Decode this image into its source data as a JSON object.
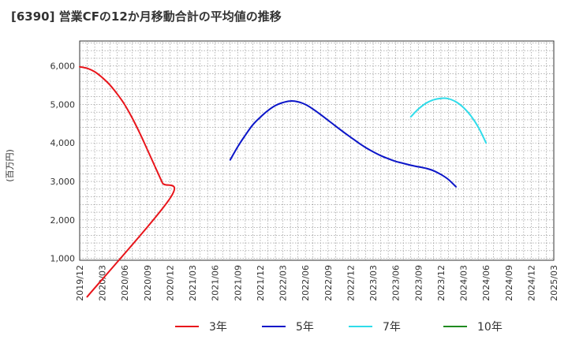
{
  "chart_data": {
    "type": "line",
    "title": "[6390]  営業CFの12か月移動合計の平均値の推移",
    "ylabel": "(百万円)",
    "xlabel": "",
    "ylim": [
      950,
      6650
    ],
    "yticks": [
      1000,
      2000,
      3000,
      4000,
      5000,
      6000
    ],
    "ytick_labels": [
      "1,000",
      "2,000",
      "3,000",
      "4,000",
      "5,000",
      "6,000"
    ],
    "xticks": [
      "2019/12",
      "2020/03",
      "2020/06",
      "2020/09",
      "2020/12",
      "2021/03",
      "2021/06",
      "2021/09",
      "2021/12",
      "2022/03",
      "2022/06",
      "2022/09",
      "2022/12",
      "2023/03",
      "2023/06",
      "2023/09",
      "2023/12",
      "2024/03",
      "2024/06",
      "2024/09",
      "2024/12",
      "2025/03"
    ],
    "grid": true,
    "legend_position": "bottom",
    "series": [
      {
        "name": "3年",
        "color": "#e8151b",
        "points": [
          [
            "2019/12",
            5980
          ],
          [
            "2020/01",
            5940
          ],
          [
            "2020/02",
            5850
          ],
          [
            "2020/03",
            5700
          ],
          [
            "2020/04",
            5510
          ],
          [
            "2020/05",
            5270
          ],
          [
            "2020/06",
            4990
          ],
          [
            "2020/07",
            4640
          ],
          [
            "2020/08",
            4250
          ],
          [
            "2020/09",
            3820
          ],
          [
            "2020/10",
            3390
          ],
          [
            "2020/11",
            2960
          ],
          [
            "2020/12",
            2560
          ],
          [
            "2020/01",
            0
          ]
        ]
      },
      {
        "name": "5年",
        "color": "#0b15c8",
        "points": [
          [
            "2021/08",
            3560
          ],
          [
            "2021/09",
            3900
          ],
          [
            "2021/10",
            4200
          ],
          [
            "2021/11",
            4470
          ],
          [
            "2021/12",
            4670
          ],
          [
            "2022/01",
            4840
          ],
          [
            "2022/02",
            4970
          ],
          [
            "2022/03",
            5050
          ],
          [
            "2022/04",
            5090
          ],
          [
            "2022/05",
            5070
          ],
          [
            "2022/06",
            5000
          ],
          [
            "2022/07",
            4880
          ],
          [
            "2022/08",
            4740
          ],
          [
            "2022/09",
            4590
          ],
          [
            "2022/10",
            4440
          ],
          [
            "2022/11",
            4290
          ],
          [
            "2022/12",
            4150
          ],
          [
            "2023/01",
            4010
          ],
          [
            "2023/02",
            3880
          ],
          [
            "2023/03",
            3770
          ],
          [
            "2023/04",
            3670
          ],
          [
            "2023/05",
            3590
          ],
          [
            "2023/06",
            3520
          ],
          [
            "2023/07",
            3470
          ],
          [
            "2023/08",
            3420
          ],
          [
            "2023/09",
            3380
          ],
          [
            "2023/10",
            3340
          ],
          [
            "2023/11",
            3280
          ],
          [
            "2023/12",
            3180
          ],
          [
            "2024/01",
            3050
          ],
          [
            "2024/02",
            2860
          ]
        ]
      },
      {
        "name": "7年",
        "color": "#2fdcea",
        "points": [
          [
            "2023/08",
            4680
          ],
          [
            "2023/09",
            4880
          ],
          [
            "2023/10",
            5030
          ],
          [
            "2023/11",
            5120
          ],
          [
            "2023/12",
            5160
          ],
          [
            "2024/01",
            5150
          ],
          [
            "2024/02",
            5070
          ],
          [
            "2024/03",
            4920
          ],
          [
            "2024/04",
            4700
          ],
          [
            "2024/05",
            4400
          ],
          [
            "2024/06",
            4000
          ]
        ]
      },
      {
        "name": "10年",
        "color": "#1f8a1f",
        "points": []
      }
    ]
  }
}
